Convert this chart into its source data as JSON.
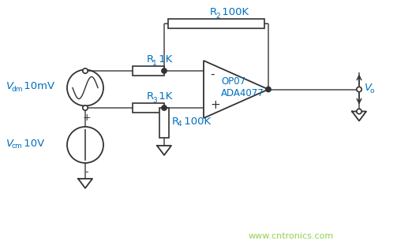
{
  "bg_color": "#ffffff",
  "wire_color": "#646464",
  "component_color": "#323232",
  "label_color": "#0070c0",
  "watermark_color": "#92d050",
  "watermark": "www.cntronics.com",
  "opamp_label1": "OP07",
  "opamp_label2": "ADA4077"
}
